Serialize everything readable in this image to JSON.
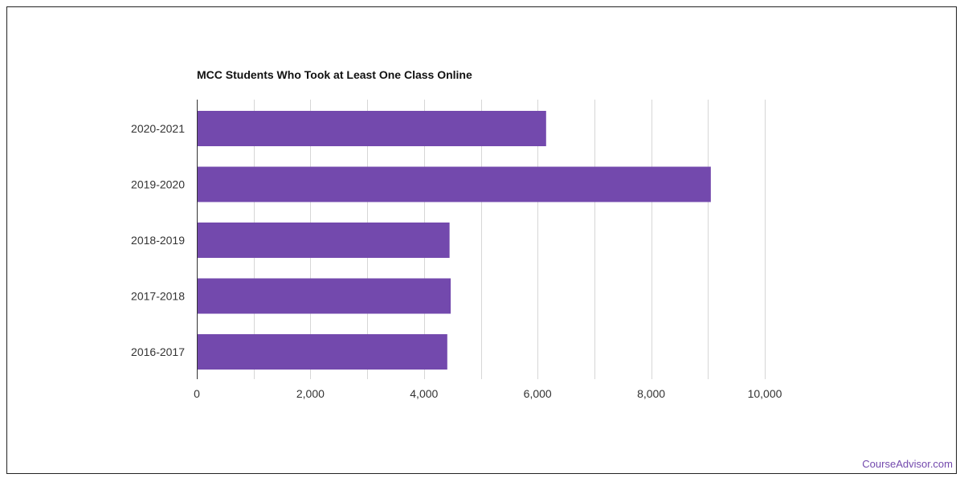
{
  "chart_data": {
    "type": "bar",
    "orientation": "horizontal",
    "title": "MCC Students Who Took at Least One Class Online",
    "xlabel": "",
    "ylabel": "",
    "categories": [
      "2020-2021",
      "2019-2020",
      "2018-2019",
      "2017-2018",
      "2016-2017"
    ],
    "values": [
      6150,
      9050,
      4450,
      4470,
      4410
    ],
    "xlim": [
      0,
      10000
    ],
    "ticks": [
      0,
      2000,
      4000,
      6000,
      8000,
      10000
    ],
    "tick_labels": [
      "0",
      "2,000",
      "4,000",
      "6,000",
      "8,000",
      "10,000"
    ],
    "grid": true,
    "bar_color": "#7349ad",
    "grid_color": "#d6d6d6",
    "axis_color": "#333333"
  },
  "watermark": {
    "text": "CourseAdvisor.com",
    "color": "#7349ad"
  }
}
